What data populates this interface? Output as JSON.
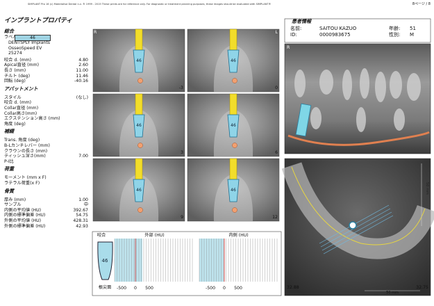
{
  "header": {
    "notice": "SIMPLANT Pro 16 (c) Materialise Dental n.v. ® 1999 - 2015   These prints are for reference only. For diagnostic or treatment planning purposes, these images should be evaluated with SIMPLANT®",
    "page": "8ページ / 8"
  },
  "properties": {
    "title": "インプラントプロパティ",
    "general": {
      "title": "総合",
      "label_name": "ラベル",
      "label": "46",
      "lines": [
        "DENTSPLY Implants",
        "OsseoSpeed EV",
        "25274"
      ],
      "rows": [
        [
          "咬合 d. (mm)",
          "4.80"
        ],
        [
          "Apical直径 (mm)",
          "2.60"
        ],
        [
          "長さ (mm)",
          "11.00"
        ],
        [
          "チルト (deg)",
          "11.46"
        ],
        [
          "回転 (deg)",
          "-40.16"
        ]
      ]
    },
    "abutment": {
      "title": "アバットメント",
      "rows": [
        [
          "スタイル",
          "(なし)"
        ],
        [
          "咬合 d. (mm)"
        ],
        [
          "Collar直径 (mm)"
        ],
        [
          "Collar高さ(mm)"
        ],
        [
          "エクステンション高さ (mm)"
        ],
        [
          "角度 (deg)"
        ]
      ]
    },
    "prosthesis": {
      "title": "補綴",
      "rows": [
        [
          "Trans. 角度 (deg)"
        ],
        [
          "B-Lカンチレバー (mm)"
        ],
        [
          "クラウンの長さ (mm)"
        ],
        [
          "ティッシュ深さ(mm)",
          "7.00"
        ],
        [
          "P-I比"
        ]
      ]
    },
    "load": {
      "title": "荷重",
      "rows": [
        [
          "モーメント (mm x F)"
        ],
        [
          "ラテラル荷重(x F)"
        ]
      ]
    },
    "bone": {
      "title": "骨質",
      "rows": [
        [
          "厚み (mm)",
          "1.00"
        ],
        [
          "サンプル",
          "中"
        ],
        [
          "内側の平均値 (HU)",
          "392.67"
        ],
        [
          "内側の標準偏差 (HU)",
          "54.75"
        ],
        [
          "外側の平均値 (HU)",
          "428.31"
        ],
        [
          "外側の標準偏差 (HU)",
          "42.93"
        ]
      ]
    }
  },
  "views": {
    "left": "R",
    "right": "L",
    "slices": [
      "-3",
      "0",
      "3",
      "6",
      "9",
      "12"
    ]
  },
  "profile": {
    "occlusal": "咬合",
    "apical": "根尖面",
    "outer": {
      "title": "外部 (HU)",
      "ticks": [
        "-500",
        "0",
        "500"
      ]
    },
    "inner": {
      "title": "内側 (HU)",
      "ticks": [
        "-500",
        "0",
        "500"
      ]
    }
  },
  "patient": {
    "title": "患者情報",
    "fields": [
      [
        "名前:",
        "SAITOU KAZUO"
      ],
      [
        "年齢:",
        "51"
      ],
      [
        "ID:",
        "0000983675"
      ],
      [
        "性別:",
        "M"
      ]
    ]
  },
  "panoramic": {
    "orientation": "R"
  },
  "axial": {
    "scale_v": "50 mm",
    "left": "32.88",
    "right": "32.75",
    "scale_h": "50 mm"
  }
}
